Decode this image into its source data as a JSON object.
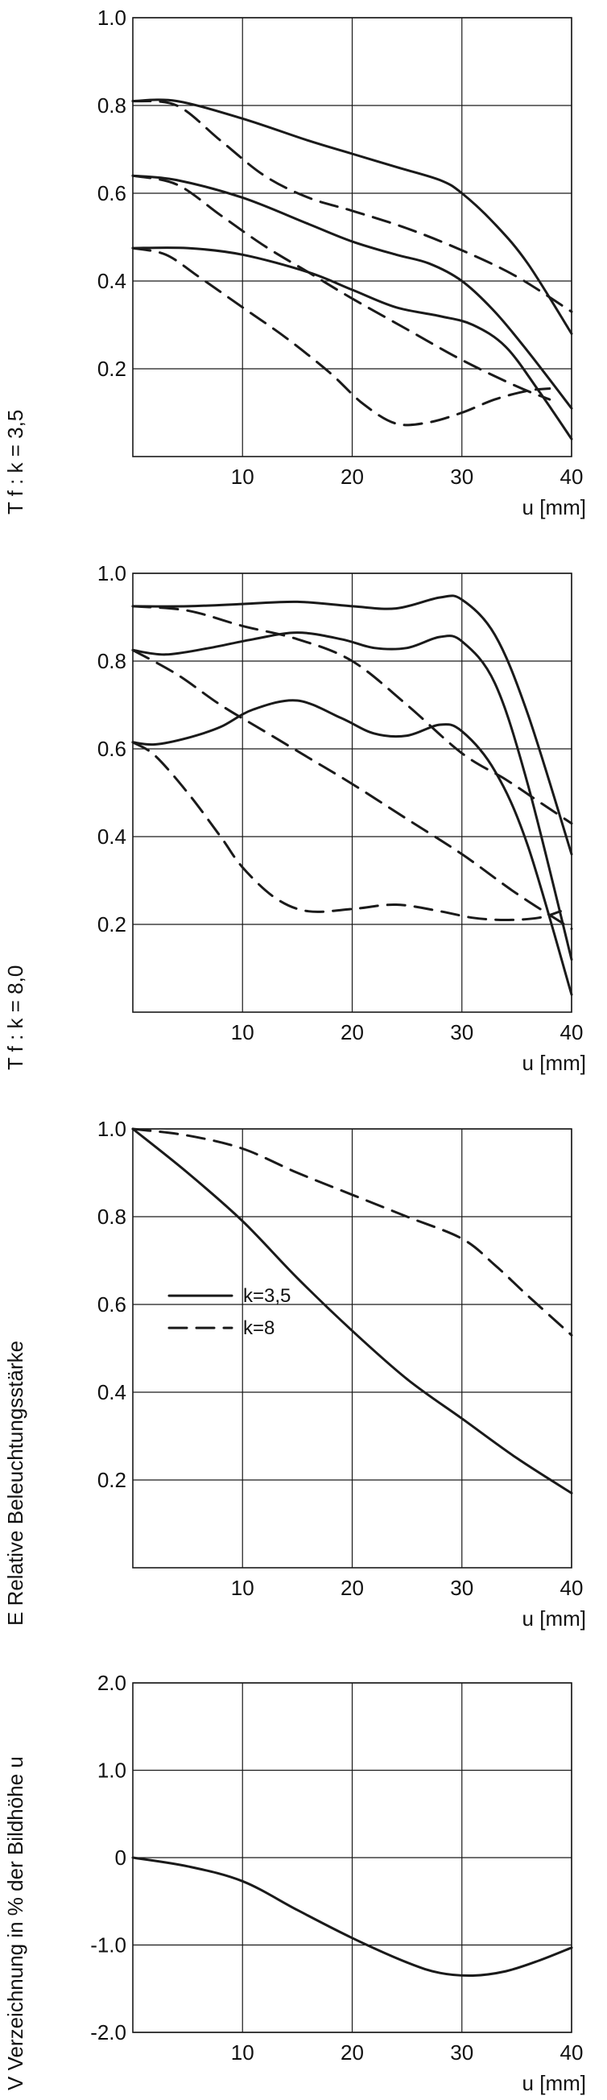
{
  "chart_data": [
    {
      "type": "line",
      "title": "",
      "ylabel": "T f : k = 3,5",
      "xlabel": "u [mm]",
      "xlim": [
        0,
        40
      ],
      "ylim": [
        0,
        1.0
      ],
      "xticks": [
        10,
        20,
        30,
        40
      ],
      "xtick_labels": [
        "10",
        "20",
        "30",
        "40"
      ],
      "yticks": [
        0.2,
        0.4,
        0.6,
        0.8,
        1.0
      ],
      "ytick_labels": [
        "0.2",
        "0.4",
        "0.6",
        "0.8",
        "1.0"
      ],
      "grid": true,
      "series": [
        {
          "style": "solid",
          "x": [
            0,
            4,
            10,
            16,
            20,
            24,
            28,
            30,
            33,
            36,
            40
          ],
          "y": [
            0.81,
            0.81,
            0.77,
            0.72,
            0.69,
            0.66,
            0.63,
            0.6,
            0.53,
            0.44,
            0.28
          ]
        },
        {
          "style": "solid",
          "x": [
            0,
            4,
            10,
            16,
            20,
            24,
            27,
            30,
            33,
            36,
            40
          ],
          "y": [
            0.64,
            0.63,
            0.59,
            0.53,
            0.49,
            0.46,
            0.44,
            0.4,
            0.33,
            0.24,
            0.11
          ]
        },
        {
          "style": "solid",
          "x": [
            0,
            5,
            10,
            16,
            20,
            24,
            28,
            31,
            34,
            37,
            40
          ],
          "y": [
            0.475,
            0.475,
            0.46,
            0.42,
            0.38,
            0.34,
            0.32,
            0.3,
            0.25,
            0.15,
            0.04
          ]
        },
        {
          "style": "dashed",
          "x": [
            0,
            4,
            8,
            12,
            16,
            20,
            25,
            30,
            35,
            40
          ],
          "y": [
            0.81,
            0.8,
            0.72,
            0.64,
            0.59,
            0.56,
            0.52,
            0.47,
            0.41,
            0.33
          ]
        },
        {
          "style": "dashed",
          "x": [
            0,
            4,
            8,
            12,
            16,
            20,
            25,
            30,
            35,
            38
          ],
          "y": [
            0.64,
            0.62,
            0.55,
            0.48,
            0.42,
            0.36,
            0.29,
            0.22,
            0.16,
            0.13
          ]
        },
        {
          "style": "dashed",
          "x": [
            0,
            3,
            6,
            10,
            14,
            18,
            21,
            24,
            27,
            30,
            33,
            36,
            38
          ],
          "y": [
            0.475,
            0.46,
            0.41,
            0.34,
            0.27,
            0.19,
            0.12,
            0.075,
            0.078,
            0.1,
            0.13,
            0.15,
            0.155
          ]
        }
      ]
    },
    {
      "type": "line",
      "title": "",
      "ylabel": "T f : k = 8,0",
      "xlabel": "u [mm]",
      "xlim": [
        0,
        40
      ],
      "ylim": [
        0,
        1.0
      ],
      "xticks": [
        10,
        20,
        30,
        40
      ],
      "xtick_labels": [
        "10",
        "20",
        "30",
        "40"
      ],
      "yticks": [
        0.2,
        0.4,
        0.6,
        0.8,
        1.0
      ],
      "ytick_labels": [
        "0.2",
        "0.4",
        "0.6",
        "0.8",
        "1.0"
      ],
      "grid": true,
      "series": [
        {
          "style": "solid",
          "x": [
            0,
            5,
            10,
            15,
            20,
            24,
            28,
            30,
            33,
            36,
            40
          ],
          "y": [
            0.925,
            0.925,
            0.93,
            0.935,
            0.925,
            0.92,
            0.945,
            0.94,
            0.86,
            0.68,
            0.36
          ]
        },
        {
          "style": "solid",
          "x": [
            0,
            3,
            7,
            11,
            15,
            19,
            22,
            25,
            28,
            30,
            33,
            36,
            40
          ],
          "y": [
            0.825,
            0.815,
            0.83,
            0.85,
            0.865,
            0.85,
            0.83,
            0.83,
            0.855,
            0.845,
            0.75,
            0.52,
            0.12
          ]
        },
        {
          "style": "solid",
          "x": [
            0,
            2,
            5,
            8,
            11,
            15,
            19,
            22,
            25,
            28,
            30,
            33,
            36,
            40
          ],
          "y": [
            0.615,
            0.61,
            0.625,
            0.65,
            0.69,
            0.71,
            0.67,
            0.635,
            0.63,
            0.655,
            0.64,
            0.55,
            0.38,
            0.04
          ]
        },
        {
          "style": "dashed",
          "x": [
            0,
            5,
            10,
            15,
            20,
            25,
            30,
            34,
            37,
            40
          ],
          "y": [
            0.925,
            0.915,
            0.88,
            0.85,
            0.8,
            0.7,
            0.59,
            0.53,
            0.48,
            0.43
          ]
        },
        {
          "style": "dashed",
          "x": [
            0,
            4,
            8,
            12,
            16,
            20,
            25,
            30,
            35,
            40
          ],
          "y": [
            0.825,
            0.77,
            0.7,
            0.64,
            0.58,
            0.52,
            0.44,
            0.36,
            0.27,
            0.19
          ]
        },
        {
          "style": "dashed",
          "x": [
            0,
            2,
            5,
            8,
            10,
            13,
            16,
            20,
            24,
            28,
            31,
            34,
            37,
            39
          ],
          "y": [
            0.615,
            0.585,
            0.5,
            0.4,
            0.33,
            0.26,
            0.23,
            0.235,
            0.245,
            0.23,
            0.215,
            0.21,
            0.215,
            0.23
          ]
        }
      ]
    },
    {
      "type": "line",
      "title": "",
      "ylabel": "E  Relative Beleuchtungsstärke",
      "xlabel": "u [mm]",
      "xlim": [
        0,
        40
      ],
      "ylim": [
        0,
        1.0
      ],
      "xticks": [
        10,
        20,
        30,
        40
      ],
      "xtick_labels": [
        "10",
        "20",
        "30",
        "40"
      ],
      "yticks": [
        0.2,
        0.4,
        0.6,
        0.8,
        1.0
      ],
      "ytick_labels": [
        "0.2",
        "0.4",
        "0.6",
        "0.8",
        "1.0"
      ],
      "grid": true,
      "legend": "left",
      "series": [
        {
          "name": "k=3,5",
          "style": "solid",
          "x": [
            0,
            5,
            10,
            15,
            20,
            25,
            30,
            35,
            40
          ],
          "y": [
            1.0,
            0.9,
            0.79,
            0.66,
            0.54,
            0.43,
            0.34,
            0.25,
            0.17
          ]
        },
        {
          "name": "k=8",
          "style": "dashed",
          "x": [
            0,
            5,
            10,
            15,
            20,
            25,
            30,
            33,
            36,
            40
          ],
          "y": [
            1.0,
            0.985,
            0.955,
            0.9,
            0.85,
            0.8,
            0.75,
            0.69,
            0.62,
            0.53
          ]
        }
      ]
    },
    {
      "type": "line",
      "title": "",
      "ylabel": "V  Verzeichnung in % der Bildhöhe u",
      "xlabel": "u [mm]",
      "xlim": [
        0,
        40
      ],
      "ylim": [
        -2.0,
        2.0
      ],
      "xticks": [
        10,
        20,
        30,
        40
      ],
      "xtick_labels": [
        "10",
        "20",
        "30",
        "40"
      ],
      "yticks": [
        -2.0,
        -1.0,
        0,
        1.0,
        2.0
      ],
      "ytick_labels": [
        "-2.0",
        "-1.0",
        "0",
        "1.0",
        "2.0"
      ],
      "grid": true,
      "series": [
        {
          "style": "solid",
          "x": [
            0,
            5,
            10,
            15,
            20,
            25,
            28,
            31,
            34,
            37,
            40
          ],
          "y": [
            0,
            -0.1,
            -0.27,
            -0.6,
            -0.92,
            -1.2,
            -1.32,
            -1.35,
            -1.3,
            -1.18,
            -1.03
          ]
        }
      ]
    }
  ]
}
